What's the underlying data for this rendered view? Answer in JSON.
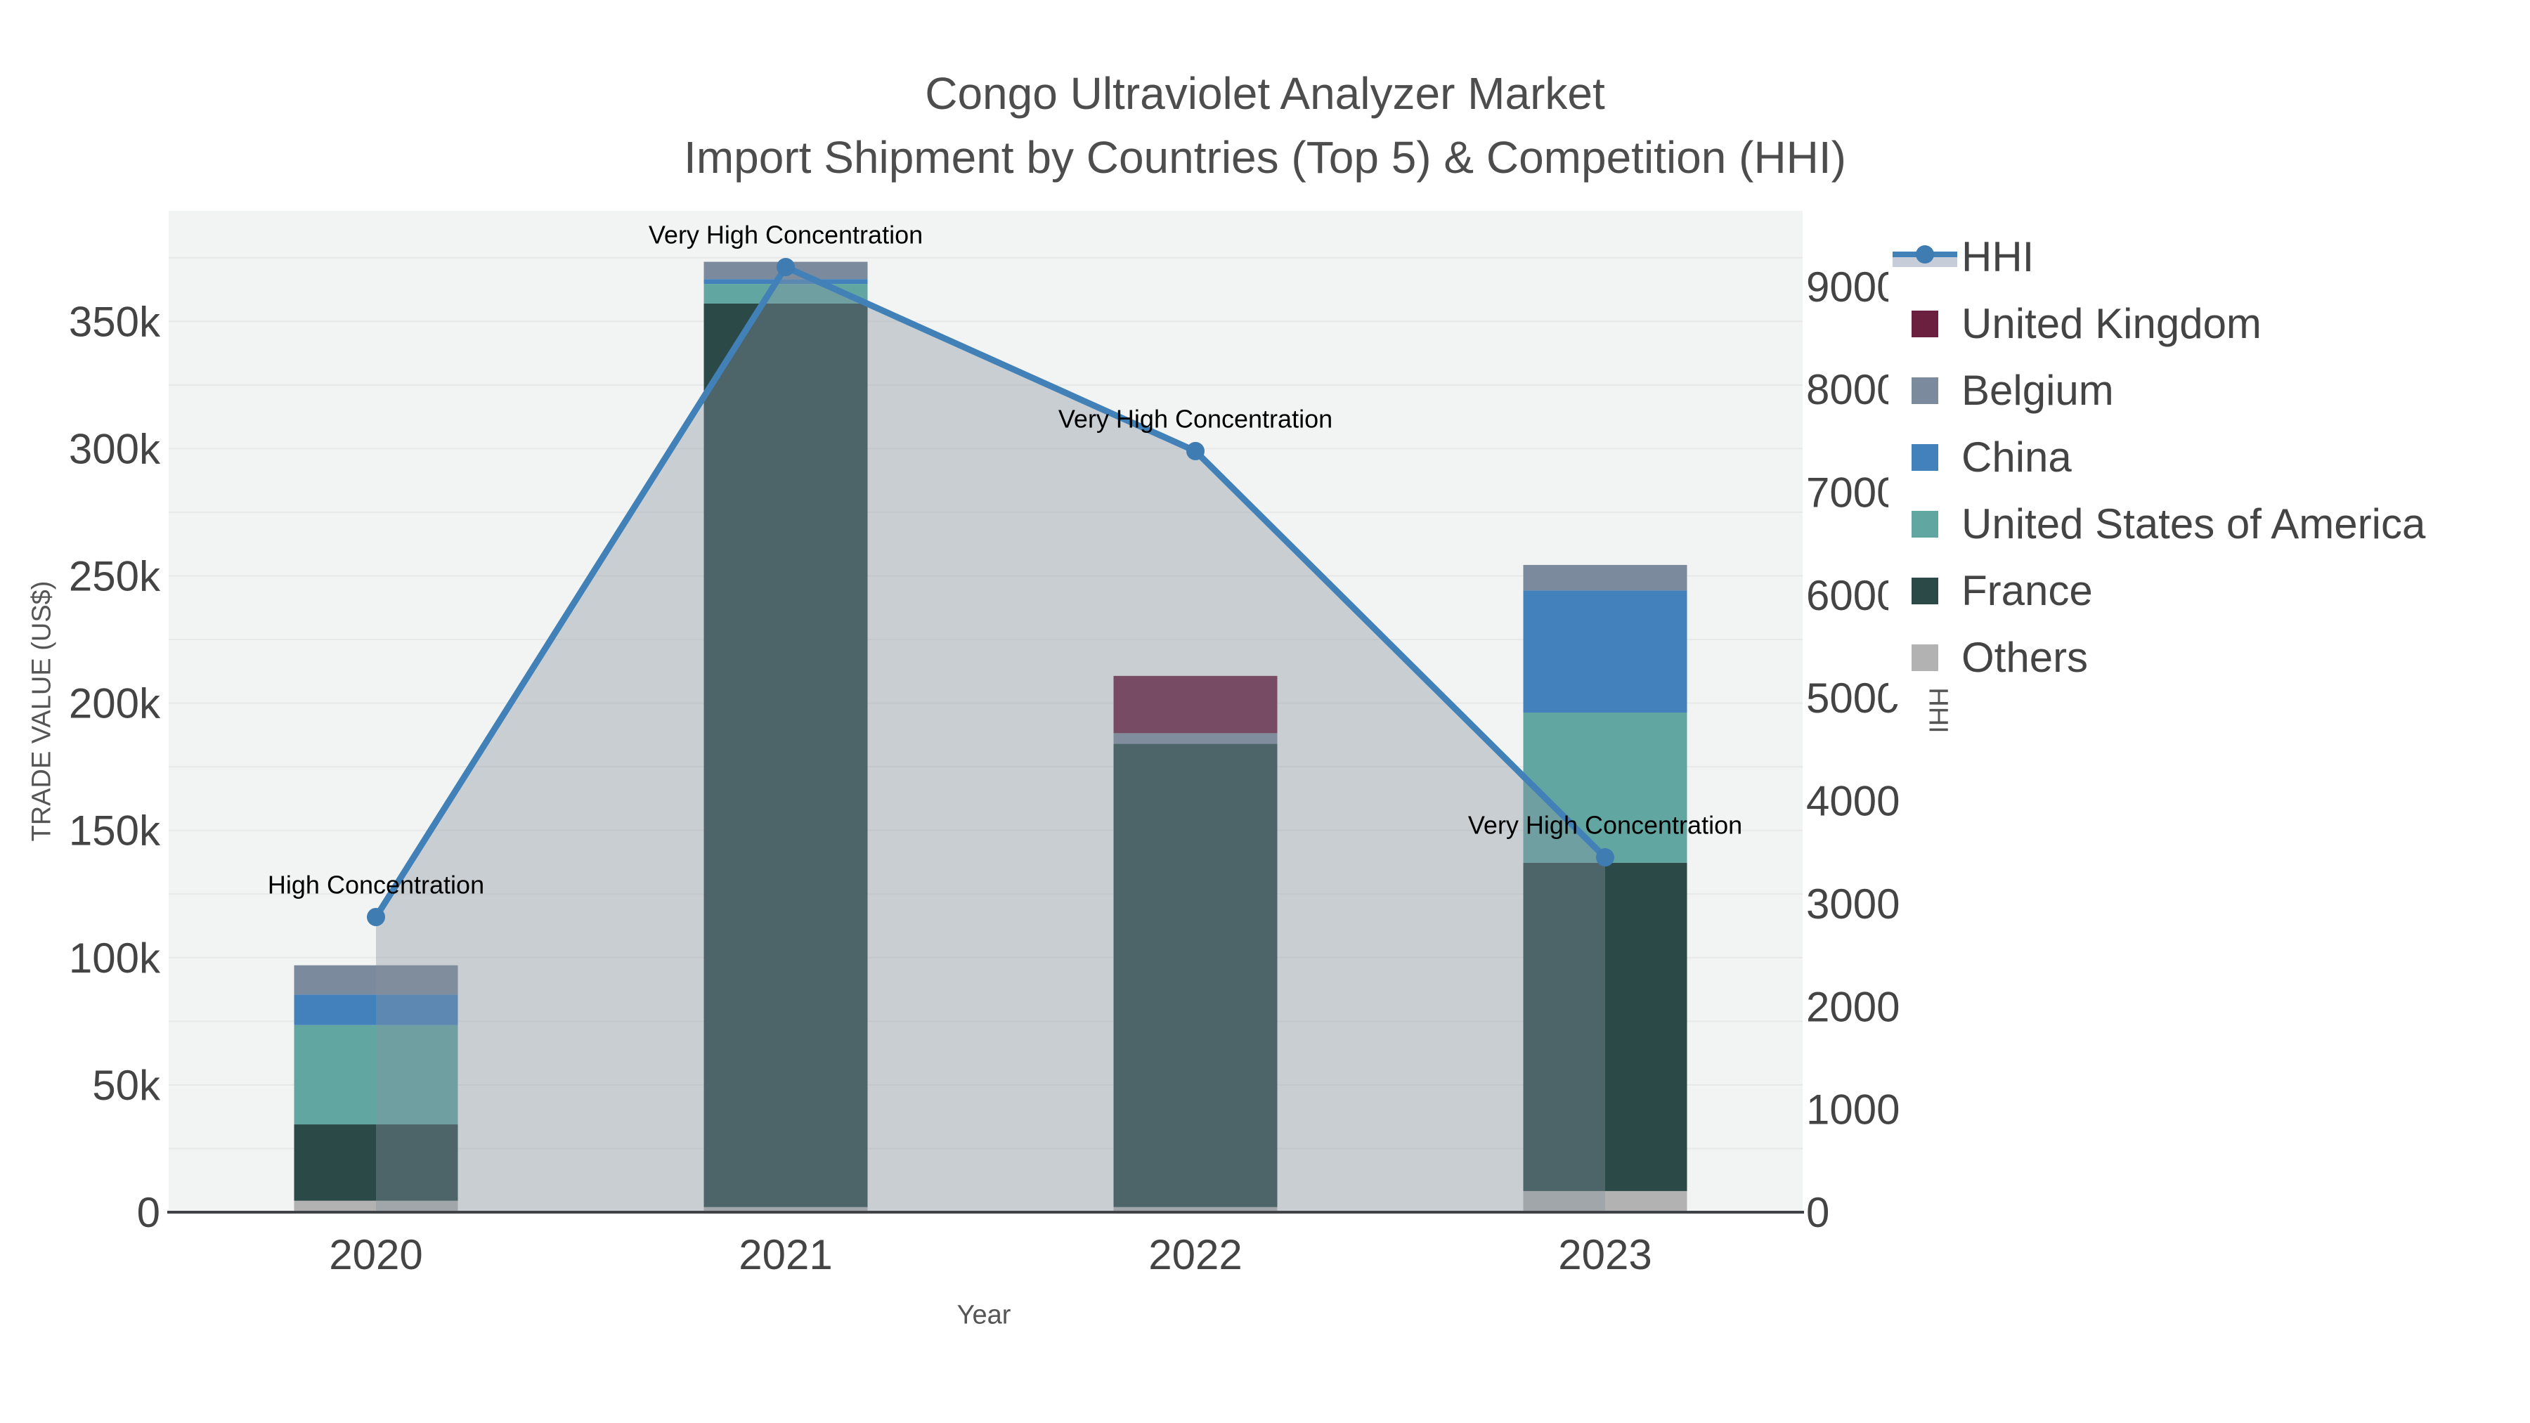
{
  "header": {
    "title_line1": "Congo Ultraviolet Analyzer Market",
    "title_line2": "Import Shipment by Countries (Top 5) & Competition (HHI)"
  },
  "chart_data": {
    "type": "combo-stacked-bar-line-area-dual-axis",
    "categories": [
      "2020",
      "2021",
      "2022",
      "2023"
    ],
    "series": [
      {
        "name": "United Kingdom",
        "type": "bar",
        "color": "#6c2040",
        "values": [
          0,
          0,
          22500,
          0
        ]
      },
      {
        "name": "Belgium",
        "type": "bar",
        "color": "#7b8a9c",
        "values": [
          11500,
          6800,
          4200,
          10000
        ]
      },
      {
        "name": "China",
        "type": "bar",
        "color": "#4381bd",
        "values": [
          12000,
          1900,
          0,
          48000
        ]
      },
      {
        "name": "United States of America",
        "type": "bar",
        "color": "#62a6a2",
        "values": [
          39000,
          7700,
          0,
          59000
        ]
      },
      {
        "name": "France",
        "type": "bar",
        "color": "#2b4a47",
        "values": [
          30000,
          355000,
          182000,
          129000
        ]
      },
      {
        "name": "Others",
        "type": "bar",
        "color": "#b2b2b2",
        "values": [
          4500,
          2000,
          2000,
          8300
        ]
      }
    ],
    "stack_order": [
      "Others",
      "France",
      "United States of America",
      "China",
      "Belgium",
      "United Kingdom"
    ],
    "bar_totals": [
      97000,
      373400,
      210700,
      254300
    ],
    "hhi": {
      "name": "HHI",
      "values": [
        2870,
        9190,
        7400,
        3450
      ],
      "line_color": "#4181b8",
      "marker_color": "#3e7cb1",
      "area_fill": "rgba(134,148,159,0.38)"
    },
    "annotations": [
      {
        "category": "2020",
        "text": "High Concentration"
      },
      {
        "category": "2021",
        "text": "Very High Concentration"
      },
      {
        "category": "2022",
        "text": "Very High Concentration"
      },
      {
        "category": "2023",
        "text": "Very High Concentration"
      }
    ],
    "axes": {
      "left": {
        "title": "TRADE VALUE (US$)",
        "tick_values": [
          0,
          50000,
          100000,
          150000,
          200000,
          250000,
          300000,
          350000
        ],
        "tick_labels": [
          "0",
          "50k",
          "100k",
          "150k",
          "200k",
          "250k",
          "300k",
          "350k"
        ],
        "range_max": 393000
      },
      "right": {
        "title": "HHI",
        "tick_values": [
          0,
          1000,
          2000,
          3000,
          4000,
          5000,
          6000,
          7000,
          8000,
          9000
        ],
        "tick_labels": [
          "0",
          "1000",
          "2000",
          "3000",
          "4000",
          "5000",
          "6000",
          "7000",
          "8000",
          "9000"
        ],
        "range_max": 9730
      },
      "x": {
        "title": "Year"
      }
    },
    "legend_order": [
      "HHI",
      "United Kingdom",
      "Belgium",
      "China",
      "United States of America",
      "France",
      "Others"
    ],
    "style": {
      "plot_bg": "#f2f3f3",
      "grid_color": "#e7e9e9",
      "axis_line_color": "#3f4347",
      "tick_text_color": "#444444",
      "annotation_color": "#000000"
    }
  }
}
